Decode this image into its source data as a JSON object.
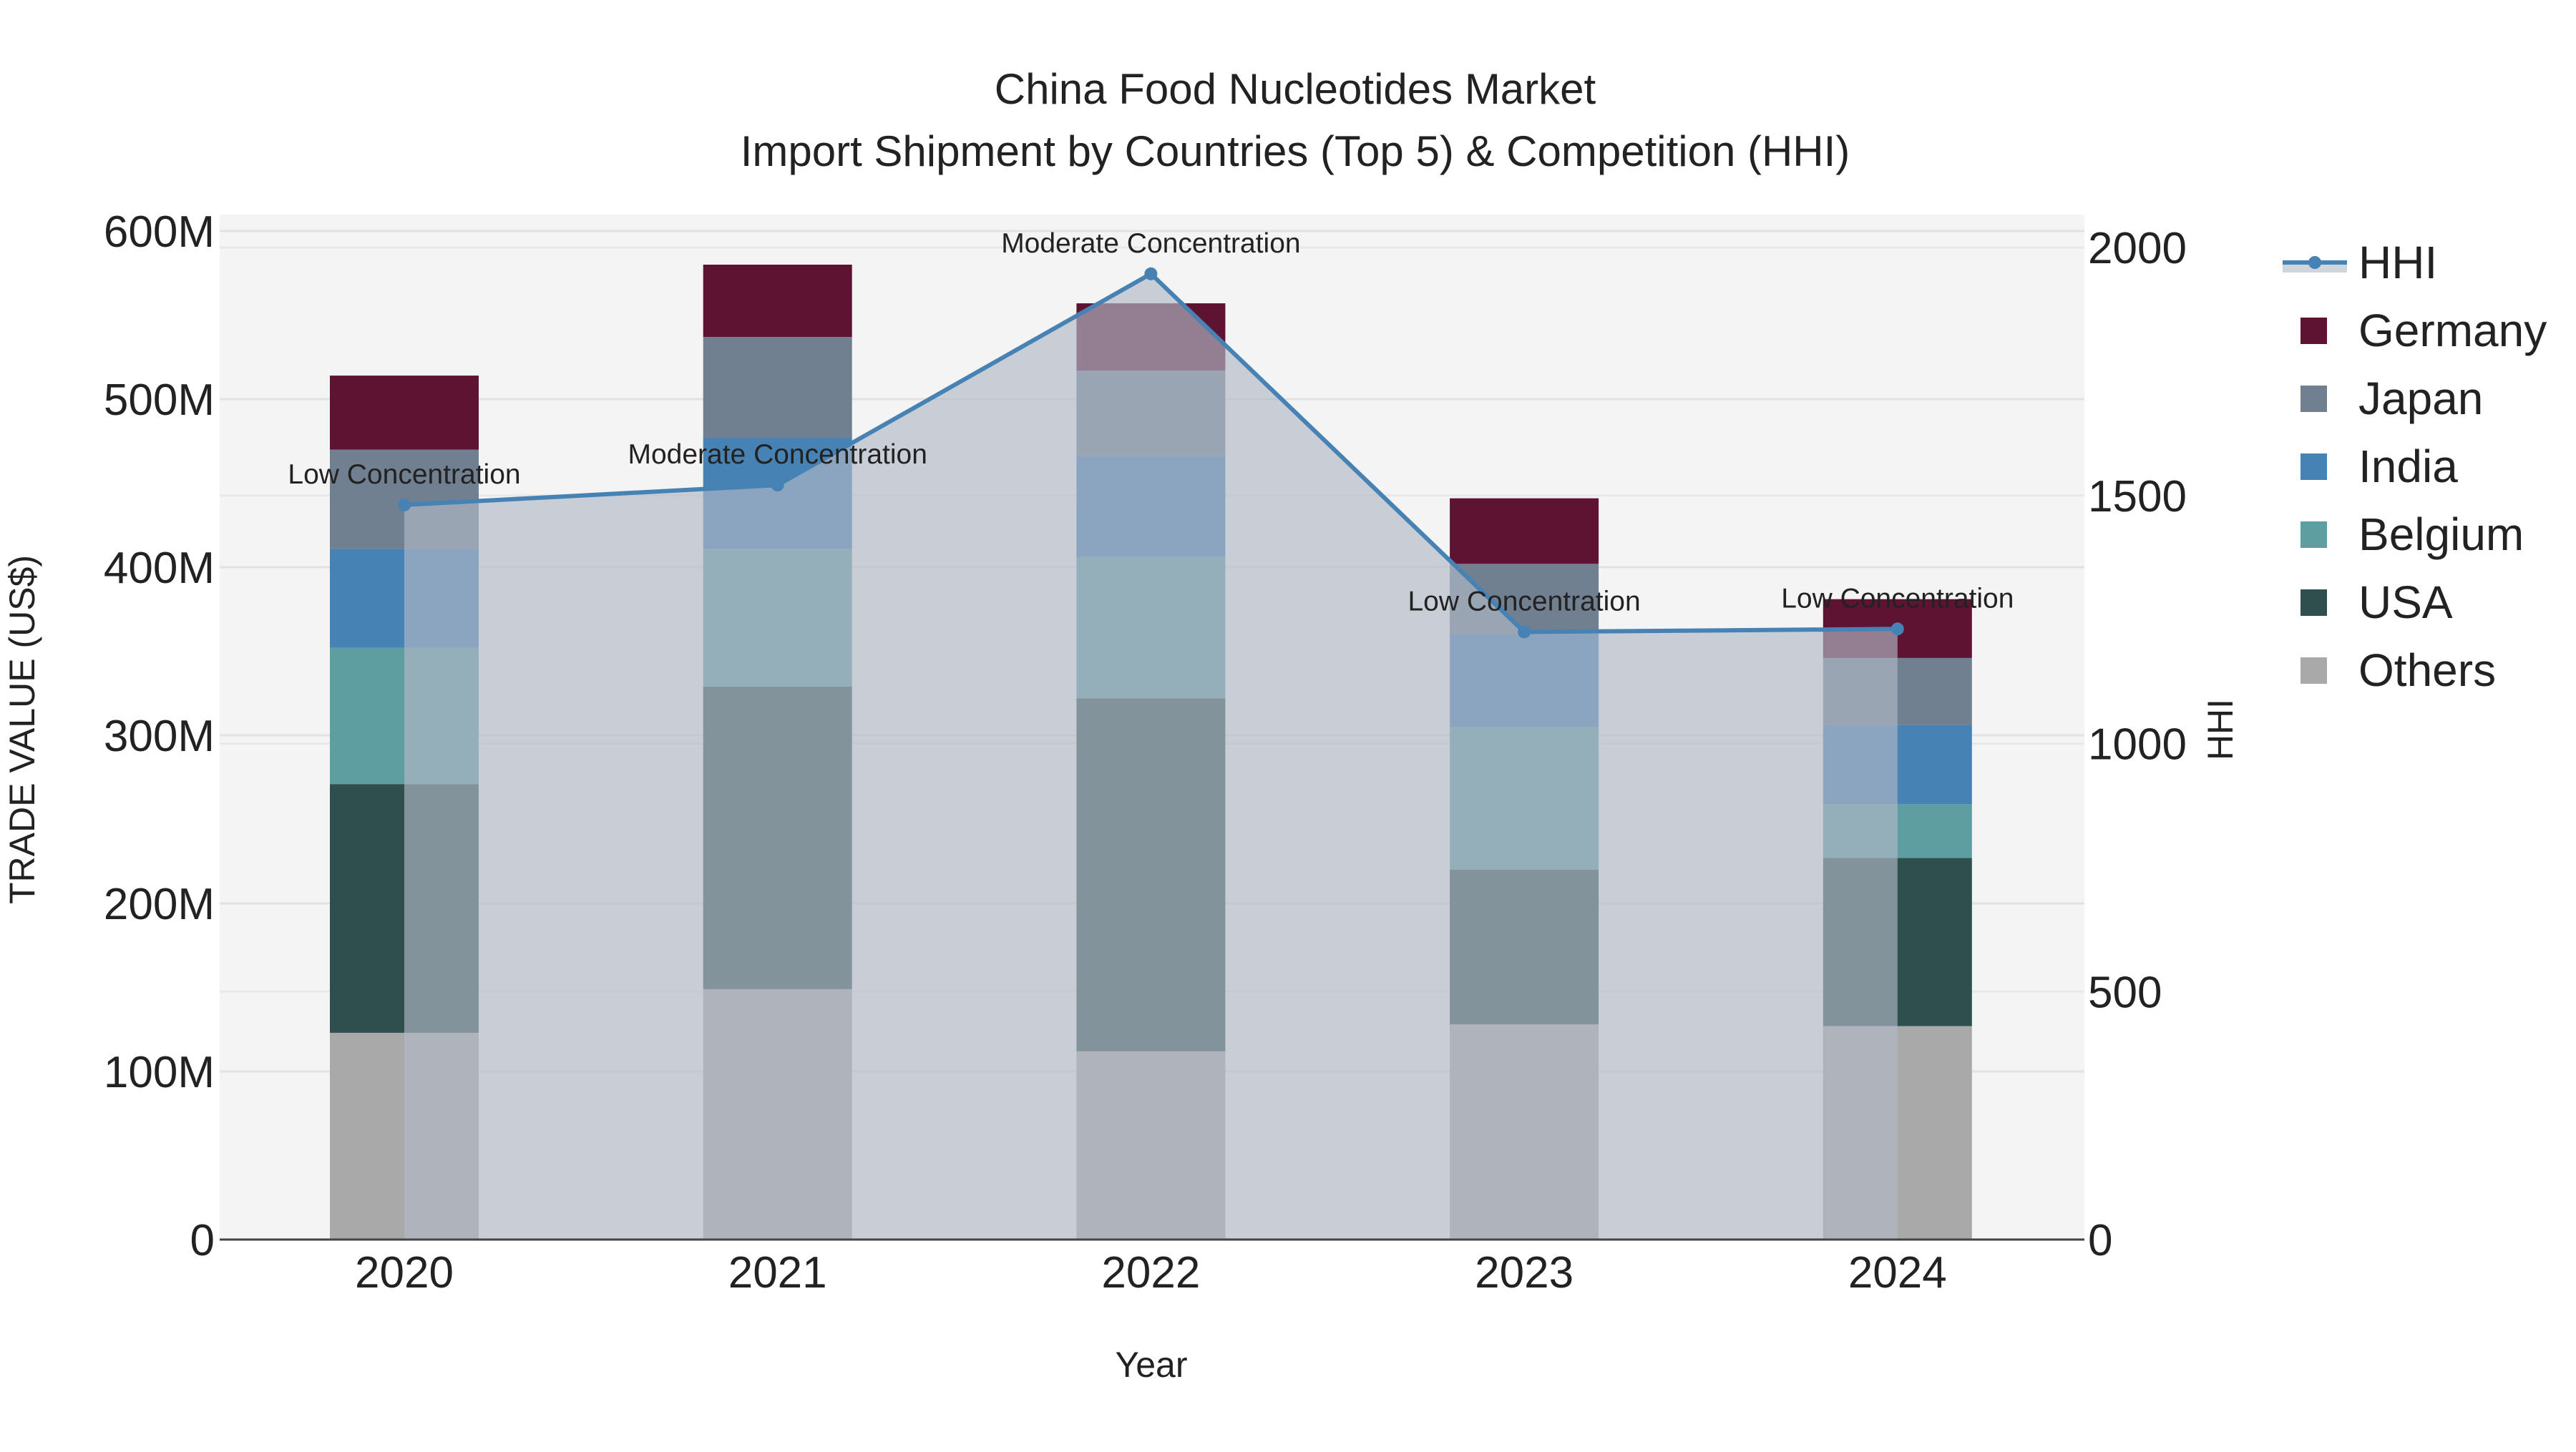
{
  "chart_data": {
    "type": "bar",
    "title_line1": "China Food Nucleotides Market",
    "title_line2": "Import Shipment by Countries (Top 5) & Competition (HHI)",
    "xlabel": "Year",
    "ylabel": "TRADE VALUE (US$)",
    "y2label": "HHI",
    "categories": [
      "2020",
      "2021",
      "2022",
      "2023",
      "2024"
    ],
    "ylim": [
      0,
      620000000
    ],
    "y_ticks": [
      0,
      100000000,
      200000000,
      300000000,
      400000000,
      500000000,
      600000000
    ],
    "y_tick_labels": [
      "0",
      "100M",
      "200M",
      "300M",
      "400M",
      "500M",
      "600M"
    ],
    "y2lim": [
      0,
      2067
    ],
    "y2_ticks": [
      0,
      500,
      1000,
      1500,
      2000
    ],
    "y2_tick_labels": [
      "0",
      "500",
      "1000",
      "1500",
      "2000"
    ],
    "stacked": true,
    "series": [
      {
        "name": "Others",
        "color": "#a9a9a9",
        "values": [
          123000000,
          149000000,
          112000000,
          128000000,
          127000000
        ]
      },
      {
        "name": "USA",
        "color": "#2f4f4f",
        "values": [
          148000000,
          180000000,
          210000000,
          92000000,
          100000000
        ]
      },
      {
        "name": "Belgium",
        "color": "#5f9ea0",
        "values": [
          81000000,
          82000000,
          84000000,
          85000000,
          32000000
        ]
      },
      {
        "name": "India",
        "color": "#4682b4",
        "values": [
          59000000,
          66000000,
          60000000,
          55000000,
          47000000
        ]
      },
      {
        "name": "Japan",
        "color": "#708090",
        "values": [
          59000000,
          60000000,
          51000000,
          42000000,
          40000000
        ]
      },
      {
        "name": "Germany",
        "color": "#5f1333",
        "values": [
          44000000,
          43000000,
          40000000,
          39000000,
          35000000
        ]
      }
    ],
    "hhi": {
      "name": "HHI",
      "color": "#4682b4",
      "values": [
        1481,
        1521,
        1947,
        1225,
        1231
      ]
    },
    "annotations": [
      "Low Concentration",
      "Moderate Concentration",
      "Moderate Concentration",
      "Low Concentration",
      "Low Concentration"
    ],
    "legend": [
      "HHI",
      "Germany",
      "Japan",
      "India",
      "Belgium",
      "USA",
      "Others"
    ],
    "legend_position": "right",
    "grid": true
  }
}
